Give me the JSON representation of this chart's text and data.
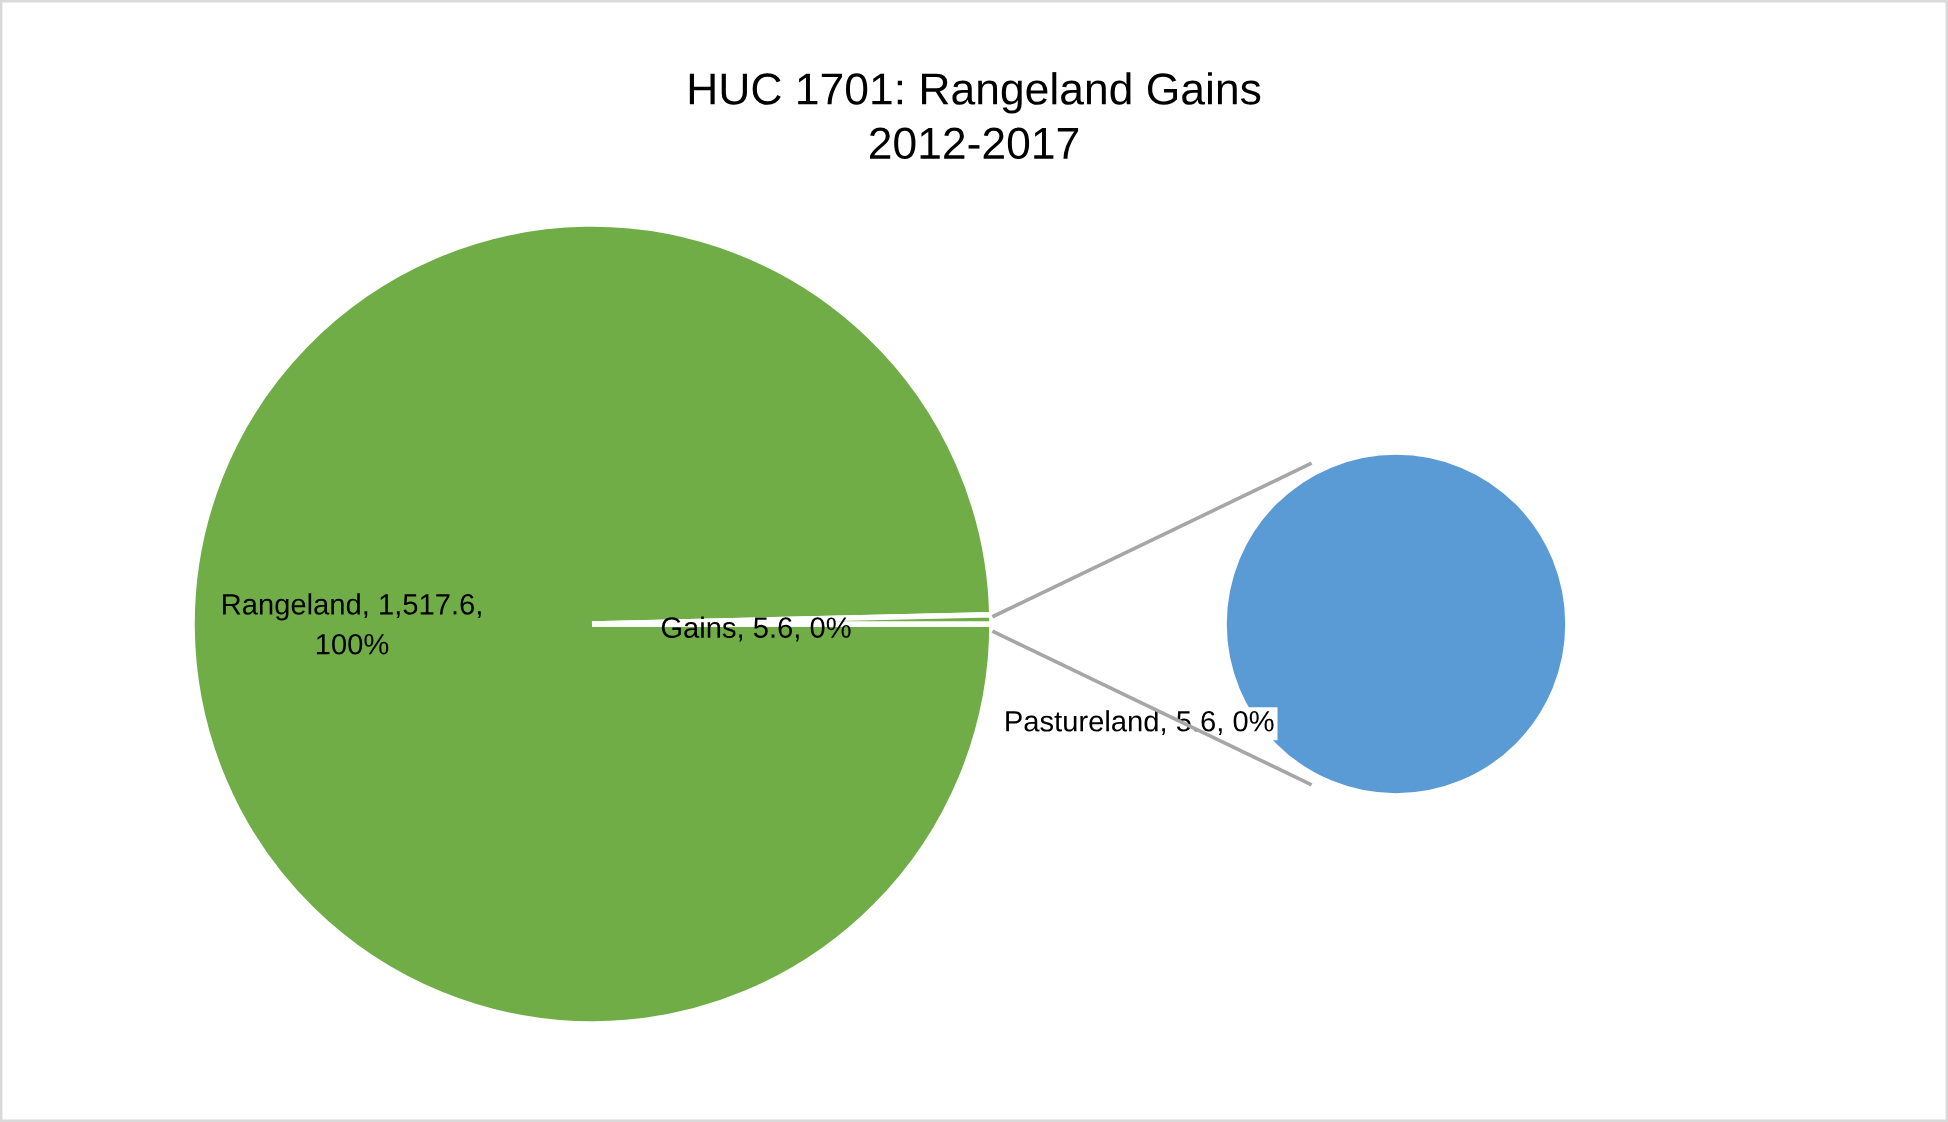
{
  "chart_data": [
    {
      "type": "pie",
      "title": "HUC 1701: Rangeland Gains\n2012-2017",
      "categories": [
        "Rangeland",
        "Gains"
      ],
      "values": [
        1517.6,
        5.6
      ],
      "colors": [
        "#70ad47",
        "#70ad47"
      ],
      "value_labels": [
        "1,517.6, 100%",
        "5.6, 0%"
      ]
    },
    {
      "type": "pie",
      "categories": [
        "Pastureland"
      ],
      "values": [
        5.6
      ],
      "colors": [
        "#5b9bd5"
      ],
      "value_labels": [
        "5.6, 0%"
      ]
    }
  ]
}
